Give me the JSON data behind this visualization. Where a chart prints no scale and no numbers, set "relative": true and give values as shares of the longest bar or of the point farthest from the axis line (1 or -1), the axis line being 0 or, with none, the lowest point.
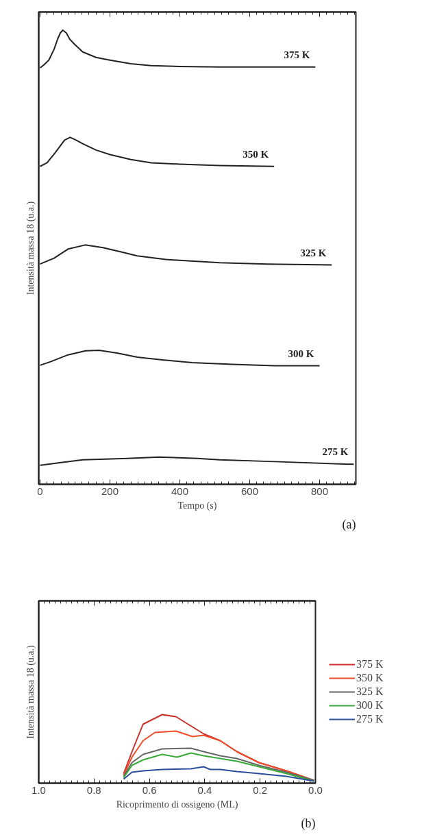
{
  "chart_data": [
    {
      "type": "line",
      "xlabel": "Tempo (s)",
      "ylabel": "Intensità massa 18 (u.a.)",
      "relative": true,
      "xlim": [
        -4,
        904
      ],
      "xticks": [
        0,
        200,
        400,
        600,
        800
      ],
      "grid": false,
      "legend": false,
      "annotations": [
        "(a)"
      ],
      "series": [
        {
          "name": "375 K",
          "color": "#222222",
          "x": [
            0,
            10,
            25,
            40,
            50,
            58,
            65,
            75,
            85,
            100,
            122,
            160,
            200,
            260,
            318,
            400,
            514,
            650,
            788
          ],
          "values": [
            0.917,
            0.923,
            0.934,
            0.958,
            0.98,
            0.994,
            1.0,
            0.994,
            0.98,
            0.968,
            0.952,
            0.94,
            0.934,
            0.926,
            0.922,
            0.92,
            0.919,
            0.919,
            0.919
          ]
        },
        {
          "name": "350 K",
          "color": "#222222",
          "x": [
            0,
            20,
            45,
            70,
            86,
            100,
            122,
            160,
            200,
            260,
            318,
            400,
            514,
            670
          ],
          "values": [
            0.7,
            0.708,
            0.732,
            0.758,
            0.764,
            0.759,
            0.75,
            0.736,
            0.726,
            0.715,
            0.708,
            0.705,
            0.702,
            0.7
          ]
        },
        {
          "name": "325 K",
          "color": "#222222",
          "x": [
            0,
            40,
            80,
            129,
            180,
            230,
            278,
            360,
            514,
            650,
            835
          ],
          "values": [
            0.485,
            0.498,
            0.518,
            0.527,
            0.521,
            0.512,
            0.503,
            0.495,
            0.488,
            0.485,
            0.483
          ]
        },
        {
          "name": "300 K",
          "color": "#222222",
          "x": [
            0,
            30,
            80,
            130,
            169,
            220,
            278,
            350,
            435,
            550,
            670,
            800
          ],
          "values": [
            0.262,
            0.27,
            0.285,
            0.294,
            0.295,
            0.289,
            0.28,
            0.274,
            0.268,
            0.264,
            0.261,
            0.261
          ]
        },
        {
          "name": "275 K",
          "color": "#222222",
          "x": [
            0,
            60,
            122,
            250,
            341,
            450,
            514,
            670,
            898
          ],
          "values": [
            0.042,
            0.048,
            0.054,
            0.057,
            0.06,
            0.057,
            0.054,
            0.05,
            0.044
          ]
        }
      ]
    },
    {
      "type": "line",
      "xlabel": "Ricoprimento di ossigeno (ML)",
      "ylabel": "Intensità massa 18 (u.a.)",
      "relative": true,
      "xlim": [
        1.0,
        0.0
      ],
      "xticks": [
        {
          "value": 1.0,
          "label": "1.0"
        },
        0.8,
        0.6,
        0.4,
        0.2,
        {
          "value": 0.0,
          "label": "0.0"
        }
      ],
      "grid": false,
      "legend": "right",
      "annotations": [
        "(b)"
      ],
      "series": [
        {
          "name": "375 K",
          "color": "#c8322a",
          "x": [
            0.693,
            0.663,
            0.623,
            0.554,
            0.504,
            0.444,
            0.404,
            0.344,
            0.284,
            0.204,
            0.105,
            0.005
          ],
          "values": [
            0.14,
            0.46,
            0.86,
            1.0,
            0.97,
            0.82,
            0.72,
            0.62,
            0.46,
            0.3,
            0.18,
            0.04
          ]
        },
        {
          "name": "350 K",
          "color": "#f04a2a",
          "x": [
            0.693,
            0.663,
            0.623,
            0.58,
            0.504,
            0.444,
            0.404,
            0.344,
            0.284,
            0.204,
            0.105,
            0.005
          ],
          "values": [
            0.12,
            0.38,
            0.62,
            0.74,
            0.76,
            0.68,
            0.7,
            0.62,
            0.46,
            0.3,
            0.18,
            0.04
          ]
        },
        {
          "name": "325 K",
          "color": "#666666",
          "x": [
            0.693,
            0.663,
            0.623,
            0.554,
            0.45,
            0.404,
            0.344,
            0.284,
            0.204,
            0.105,
            0.005
          ],
          "values": [
            0.1,
            0.3,
            0.42,
            0.5,
            0.51,
            0.46,
            0.4,
            0.36,
            0.26,
            0.16,
            0.04
          ]
        },
        {
          "name": "300 K",
          "color": "#3aa83a",
          "x": [
            0.693,
            0.663,
            0.623,
            0.554,
            0.5,
            0.45,
            0.404,
            0.344,
            0.284,
            0.204,
            0.105,
            0.005
          ],
          "values": [
            0.08,
            0.26,
            0.34,
            0.42,
            0.38,
            0.44,
            0.4,
            0.36,
            0.32,
            0.24,
            0.14,
            0.03
          ]
        },
        {
          "name": "275 K",
          "color": "#2a4e9a",
          "x": [
            0.693,
            0.663,
            0.623,
            0.554,
            0.45,
            0.404,
            0.38,
            0.344,
            0.284,
            0.204,
            0.105,
            0.005
          ],
          "values": [
            0.06,
            0.16,
            0.18,
            0.2,
            0.21,
            0.24,
            0.2,
            0.2,
            0.17,
            0.14,
            0.1,
            0.03
          ]
        }
      ]
    }
  ]
}
